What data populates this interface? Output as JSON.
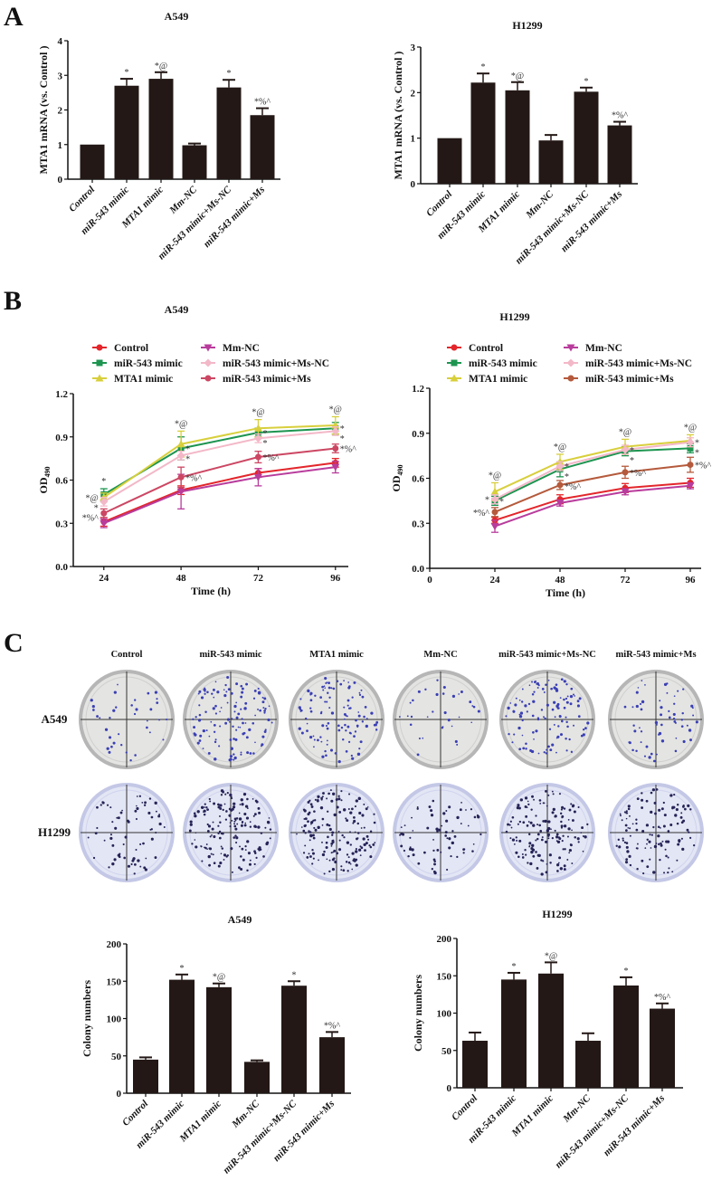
{
  "panels": {
    "a": "A",
    "b": "B",
    "c": "C"
  },
  "colony_images": {
    "column_labels": [
      "Control",
      "miR-543 mimic",
      "MTA1 mimic",
      "Mm-NC",
      "miR-543 mimic+Ms-NC",
      "miR-543 mimic+Ms"
    ],
    "row_labels": [
      "A549",
      "H1299"
    ]
  },
  "chart_data": [
    {
      "type": "bar",
      "title": "A549",
      "xlabel": "",
      "ylabel": "MTA1 mRNA (vs. Control )",
      "categories": [
        "Control",
        "miR-543 mimic",
        "MTA1 mimic",
        "Mm-NC",
        "miR-543 mimic+Ms-NC",
        "miR-543 mimic+Ms"
      ],
      "values": [
        1.0,
        2.7,
        2.9,
        0.98,
        2.65,
        1.85
      ],
      "errors": [
        0.0,
        0.2,
        0.19,
        0.05,
        0.22,
        0.2
      ],
      "annotations": [
        "",
        "*",
        "*@",
        "",
        "*",
        "*%^"
      ],
      "ylim": [
        0,
        4
      ],
      "yticks": [
        "0",
        "1",
        "2",
        "3",
        "4"
      ],
      "color": "#231816"
    },
    {
      "type": "bar",
      "title": "H1299",
      "xlabel": "",
      "ylabel": "MTA1 mRNA (vs. Control )",
      "categories": [
        "Control",
        "miR-543 mimic",
        "MTA1 mimic",
        "Mm-NC",
        "miR-543 mimic+Ms-NC",
        "miR-543 mimic+Ms"
      ],
      "values": [
        1.0,
        2.22,
        2.05,
        0.95,
        2.02,
        1.28
      ],
      "errors": [
        0.0,
        0.2,
        0.18,
        0.12,
        0.09,
        0.08
      ],
      "annotations": [
        "",
        "*",
        "*@",
        "",
        "*",
        "*%^"
      ],
      "ylim": [
        0,
        3
      ],
      "yticks": [
        "0",
        "1",
        "2",
        "3"
      ],
      "color": "#231816"
    },
    {
      "type": "line",
      "title": "A549",
      "xlabel": "Time (h)",
      "ylabel": "OD",
      "ylabel_sub": "490",
      "x": [
        24,
        48,
        72,
        96
      ],
      "xlim": [
        14.5,
        100
      ],
      "xticks": [
        "24",
        "48",
        "72",
        "96"
      ],
      "xtick_values": [
        24,
        48,
        72,
        96
      ],
      "ylim": [
        0,
        1.2
      ],
      "yticks": [
        "0.0",
        "0.3",
        "0.6",
        "0.9",
        "1.2"
      ],
      "legend": "top",
      "series": [
        {
          "name": "Control",
          "marker": "circle",
          "color": "#e3262b",
          "values": [
            0.31,
            0.53,
            0.65,
            0.72
          ],
          "errors": [
            0.03,
            0.03,
            0.03,
            0.03
          ]
        },
        {
          "name": "miR-543 mimic",
          "marker": "square",
          "color": "#1d9550",
          "values": [
            0.5,
            0.82,
            0.93,
            0.96
          ],
          "errors": [
            0.04,
            0.08,
            0.03,
            0.04
          ]
        },
        {
          "name": "MTA1 mimic",
          "marker": "triangle-up",
          "color": "#d8cf3c",
          "values": [
            0.48,
            0.85,
            0.96,
            0.98
          ],
          "errors": [
            0.03,
            0.09,
            0.06,
            0.06
          ]
        },
        {
          "name": "Mm-NC",
          "marker": "triangle-down",
          "color": "#b83c9c",
          "values": [
            0.3,
            0.52,
            0.62,
            0.69
          ],
          "errors": [
            0.03,
            0.12,
            0.06,
            0.04
          ]
        },
        {
          "name": "miR-543 mimic+Ms-NC",
          "marker": "diamond",
          "color": "#f3b8c8",
          "values": [
            0.45,
            0.77,
            0.89,
            0.94
          ],
          "errors": [
            0.03,
            0.03,
            0.03,
            0.03
          ]
        },
        {
          "name": "miR-543 mimic+Ms",
          "marker": "circle",
          "color": "#cc4763",
          "values": [
            0.37,
            0.62,
            0.76,
            0.82
          ],
          "errors": [
            0.03,
            0.07,
            0.04,
            0.03
          ]
        }
      ],
      "annotations": [
        {
          "series": 2,
          "x": 24,
          "text": "*@",
          "pos": "left"
        },
        {
          "series": 1,
          "x": 24,
          "text": "*",
          "pos": "above"
        },
        {
          "series": 4,
          "x": 24,
          "text": "*",
          "pos": "left"
        },
        {
          "series": 5,
          "x": 24,
          "text": "*%^",
          "pos": "left"
        },
        {
          "series": 2,
          "x": 48,
          "text": "*@",
          "pos": "above"
        },
        {
          "series": 1,
          "x": 48,
          "text": "*",
          "pos": "right"
        },
        {
          "series": 4,
          "x": 48,
          "text": "*",
          "pos": "right"
        },
        {
          "series": 5,
          "x": 48,
          "text": "*%^",
          "pos": "right"
        },
        {
          "series": 2,
          "x": 72,
          "text": "*@",
          "pos": "above"
        },
        {
          "series": 1,
          "x": 72,
          "text": "*",
          "pos": "right"
        },
        {
          "series": 4,
          "x": 72,
          "text": "*",
          "pos": "right"
        },
        {
          "series": 5,
          "x": 72,
          "text": "*%^",
          "pos": "right"
        },
        {
          "series": 2,
          "x": 96,
          "text": "*@",
          "pos": "above"
        },
        {
          "series": 1,
          "x": 96,
          "text": "*",
          "pos": "right"
        },
        {
          "series": 4,
          "x": 96,
          "text": "*",
          "pos": "right"
        },
        {
          "series": 5,
          "x": 96,
          "text": "*%^",
          "pos": "right"
        }
      ]
    },
    {
      "type": "line",
      "title": "H1299",
      "xlabel": "Time (h)",
      "ylabel": "OD",
      "ylabel_sub": "490",
      "x": [
        24,
        48,
        72,
        96
      ],
      "xlim": [
        0,
        100
      ],
      "xticks": [
        "0",
        "24",
        "48",
        "72",
        "96"
      ],
      "xtick_values": [
        0,
        24,
        48,
        72,
        96
      ],
      "ylim": [
        0,
        1.2
      ],
      "yticks": [
        "0.0",
        "0.3",
        "0.6",
        "0.9",
        "1.2"
      ],
      "legend": "top",
      "series": [
        {
          "name": "Control",
          "marker": "circle",
          "color": "#e3262b",
          "values": [
            0.32,
            0.46,
            0.535,
            0.57
          ],
          "errors": [
            0.02,
            0.03,
            0.03,
            0.03
          ]
        },
        {
          "name": "miR-543 mimic",
          "marker": "square",
          "color": "#1d9550",
          "values": [
            0.45,
            0.66,
            0.78,
            0.8
          ],
          "errors": [
            0.03,
            0.05,
            0.03,
            0.03
          ]
        },
        {
          "name": "MTA1 mimic",
          "marker": "triangle-up",
          "color": "#d8cf3c",
          "values": [
            0.51,
            0.71,
            0.81,
            0.85
          ],
          "errors": [
            0.06,
            0.05,
            0.05,
            0.04
          ]
        },
        {
          "name": "Mm-NC",
          "marker": "triangle-down",
          "color": "#b83c9c",
          "values": [
            0.28,
            0.435,
            0.51,
            0.55
          ],
          "errors": [
            0.04,
            0.02,
            0.02,
            0.02
          ]
        },
        {
          "name": "miR-543 mimic+Ms-NC",
          "marker": "diamond",
          "color": "#f3b8c8",
          "values": [
            0.46,
            0.68,
            0.79,
            0.84
          ],
          "errors": [
            0.03,
            0.03,
            0.03,
            0.03
          ]
        },
        {
          "name": "miR-543 mimic+Ms",
          "marker": "circle",
          "color": "#b55a3c",
          "values": [
            0.375,
            0.555,
            0.64,
            0.69
          ],
          "errors": [
            0.03,
            0.03,
            0.04,
            0.05
          ]
        }
      ],
      "annotations": [
        {
          "series": 2,
          "x": 24,
          "text": "*@",
          "pos": "above"
        },
        {
          "series": 1,
          "x": 24,
          "text": "*",
          "pos": "right"
        },
        {
          "series": 4,
          "x": 24,
          "text": "*",
          "pos": "left"
        },
        {
          "series": 5,
          "x": 24,
          "text": "*%^",
          "pos": "left"
        },
        {
          "series": 2,
          "x": 48,
          "text": "*@",
          "pos": "above"
        },
        {
          "series": 1,
          "x": 48,
          "text": "*",
          "pos": "right"
        },
        {
          "series": 4,
          "x": 48,
          "text": "*",
          "pos": "right"
        },
        {
          "series": 5,
          "x": 48,
          "text": "*%^",
          "pos": "right"
        },
        {
          "series": 2,
          "x": 72,
          "text": "*@",
          "pos": "above"
        },
        {
          "series": 1,
          "x": 72,
          "text": "*",
          "pos": "right"
        },
        {
          "series": 4,
          "x": 72,
          "text": "*",
          "pos": "right"
        },
        {
          "series": 5,
          "x": 72,
          "text": "*%^",
          "pos": "right"
        },
        {
          "series": 2,
          "x": 96,
          "text": "*@",
          "pos": "above"
        },
        {
          "series": 1,
          "x": 96,
          "text": "*",
          "pos": "right"
        },
        {
          "series": 4,
          "x": 96,
          "text": "*",
          "pos": "right"
        },
        {
          "series": 5,
          "x": 96,
          "text": "*%^",
          "pos": "right"
        }
      ]
    },
    {
      "type": "bar",
      "title": "A549",
      "xlabel": "",
      "ylabel": "Colony numbers",
      "categories": [
        "Control",
        "miR-543 mimic",
        "MTA1 mimic",
        "Mm-NC",
        "miR-543 mimic+Ms-NC",
        "miR-543 mimic+Ms"
      ],
      "values": [
        45,
        152,
        142,
        42,
        144,
        75
      ],
      "errors": [
        3,
        7,
        5,
        2,
        6,
        7
      ],
      "annotations": [
        "",
        "*",
        "*@",
        "",
        "*",
        "*%^"
      ],
      "ylim": [
        0,
        200
      ],
      "yticks": [
        "0",
        "50",
        "100",
        "150",
        "200"
      ],
      "color": "#231816"
    },
    {
      "type": "bar",
      "title": "H1299",
      "xlabel": "",
      "ylabel": "Colony numbers",
      "categories": [
        "Control",
        "miR-543 mimic",
        "MTA1 mimic",
        "Mm-NC",
        "miR-543 mimic+Ms-NC",
        "miR-543 mimic+Ms"
      ],
      "values": [
        63,
        145,
        153,
        63,
        137,
        106
      ],
      "errors": [
        11,
        9,
        15,
        10,
        11,
        7
      ],
      "annotations": [
        "",
        "*",
        "*@",
        "",
        "*",
        "*%^"
      ],
      "ylim": [
        0,
        200
      ],
      "yticks": [
        "0",
        "50",
        "100",
        "150",
        "200"
      ],
      "color": "#231816"
    }
  ]
}
